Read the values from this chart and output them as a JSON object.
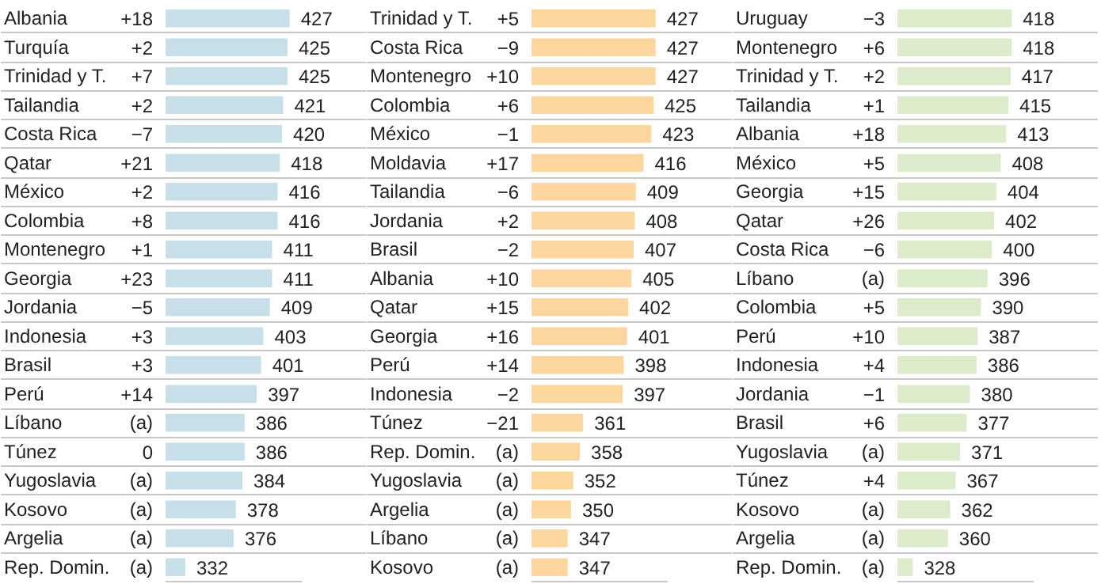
{
  "chart_data": [
    {
      "type": "bar",
      "orientation": "horizontal",
      "color": "#c6dfe9",
      "data_labels": true,
      "tick_labels": false,
      "grid": "y",
      "xlim": [
        314,
        438
      ],
      "categories": [
        "Albania",
        "Turquía",
        "Trinidad y T.",
        "Tailandia",
        "Costa Rica",
        "Qatar",
        "México",
        "Colombia",
        "Montenegro",
        "Georgia",
        "Jordania",
        "Indonesia",
        "Brasil",
        "Perú",
        "Líbano",
        "Túnez",
        "Yugoslavia",
        "Kosovo",
        "Argelia",
        "Rep. Domin."
      ],
      "values": [
        427,
        425,
        425,
        421,
        420,
        418,
        416,
        416,
        411,
        411,
        409,
        403,
        401,
        397,
        386,
        386,
        384,
        378,
        376,
        332
      ],
      "annotations": [
        "+18",
        "+2",
        "+7",
        "+2",
        "−7",
        "+21",
        "+2",
        "+8",
        "+1",
        "+23",
        "−5",
        "+3",
        "+3",
        "+14",
        "(a)",
        "0",
        "(a)",
        "(a)",
        "(a)",
        "(a)"
      ]
    },
    {
      "type": "bar",
      "orientation": "horizontal",
      "color": "#fcd69c",
      "data_labels": true,
      "tick_labels": false,
      "grid": "y",
      "xlim": [
        314,
        438
      ],
      "categories": [
        "Trinidad y T.",
        "Costa Rica",
        "Montenegro",
        "Colombia",
        "México",
        "Moldavia",
        "Tailandia",
        "Jordania",
        "Brasil",
        "Albania",
        "Qatar",
        "Georgia",
        "Perú",
        "Indonesia",
        "Túnez",
        "Rep. Domin.",
        "Yugoslavia",
        "Argelia",
        "Líbano",
        "Kosovo"
      ],
      "values": [
        427,
        427,
        427,
        425,
        423,
        416,
        409,
        408,
        407,
        405,
        402,
        401,
        398,
        397,
        361,
        358,
        352,
        350,
        347,
        347
      ],
      "annotations": [
        "+5",
        "−9",
        "+10",
        "+6",
        "−1",
        "+17",
        "−6",
        "+2",
        "−2",
        "+10",
        "+15",
        "+16",
        "+14",
        "−2",
        "−21",
        "(a)",
        "(a)",
        "(a)",
        "(a)",
        "(a)"
      ]
    },
    {
      "type": "bar",
      "orientation": "horizontal",
      "color": "#dcebca",
      "data_labels": true,
      "tick_labels": false,
      "grid": "y",
      "xlim": [
        314,
        438
      ],
      "categories": [
        "Uruguay",
        "Montenegro",
        "Trinidad y T.",
        "Tailandia",
        "Albania",
        "México",
        "Georgia",
        "Qatar",
        "Costa Rica",
        "Líbano",
        "Colombia",
        "Perú",
        "Indonesia",
        "Jordania",
        "Brasil",
        "Yugoslavia",
        "Túnez",
        "Kosovo",
        "Argelia",
        "Rep. Domin."
      ],
      "values": [
        418,
        418,
        417,
        415,
        413,
        408,
        404,
        402,
        400,
        396,
        390,
        387,
        386,
        380,
        377,
        371,
        367,
        362,
        360,
        328
      ],
      "annotations": [
        "−3",
        "+6",
        "+2",
        "+1",
        "+18",
        "+5",
        "+15",
        "+26",
        "−6",
        "(a)",
        "+5",
        "+10",
        "+4",
        "−1",
        "+6",
        "(a)",
        "+4",
        "(a)",
        "(a)",
        "(a)"
      ]
    }
  ]
}
